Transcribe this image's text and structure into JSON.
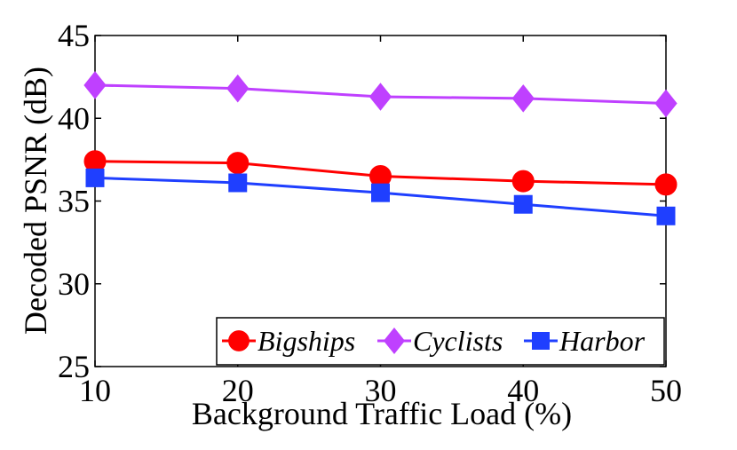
{
  "chart_data": {
    "type": "line",
    "title": "",
    "xlabel": "Background Traffic Load (%)",
    "ylabel": "Decoded PSNR (dB)",
    "x": [
      10,
      20,
      30,
      40,
      50
    ],
    "xlim": [
      10,
      50
    ],
    "ylim": [
      25,
      45
    ],
    "xticks": [
      "10",
      "20",
      "30",
      "40",
      "50"
    ],
    "yticks": [
      "25",
      "30",
      "35",
      "40",
      "45"
    ],
    "grid": false,
    "legend_position": "bottom-right",
    "series": [
      {
        "name": "Bigships",
        "marker": "circle",
        "color": "#ff0000",
        "values": [
          37.4,
          37.3,
          36.5,
          36.2,
          36.0
        ]
      },
      {
        "name": "Cyclists",
        "marker": "diamond",
        "color": "#bf40ff",
        "values": [
          42.0,
          41.8,
          41.3,
          41.2,
          40.9
        ]
      },
      {
        "name": "Harbor",
        "marker": "square",
        "color": "#1f3fff",
        "values": [
          36.4,
          36.1,
          35.5,
          34.8,
          34.1
        ]
      }
    ]
  }
}
